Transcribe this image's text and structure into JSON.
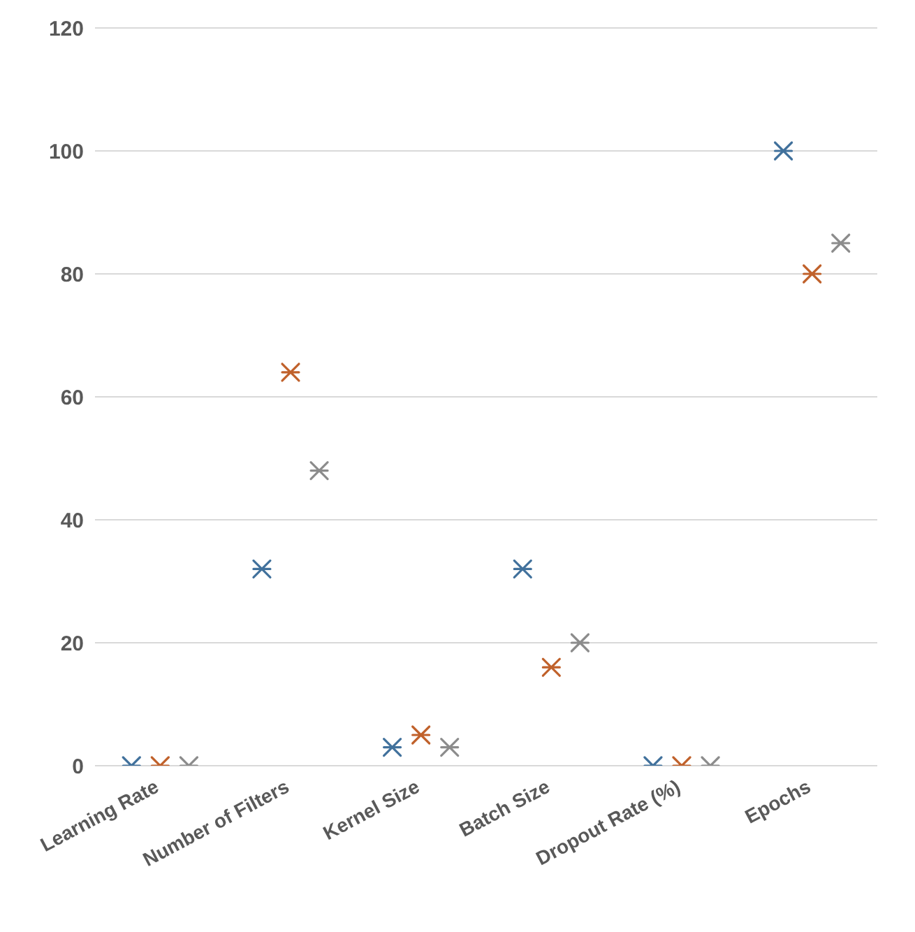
{
  "chart_data": {
    "type": "scatter",
    "categories": [
      "Learning Rate",
      "Number of Filters",
      "Kernel Size",
      "Batch Size",
      "Dropout Rate (%)",
      "Epochs"
    ],
    "series": [
      {
        "color": "#41719c",
        "values": [
          0,
          32,
          3,
          32,
          0,
          100
        ]
      },
      {
        "color": "#c0612b",
        "values": [
          0,
          64,
          5,
          16,
          0,
          80
        ]
      },
      {
        "color": "#8c8c8c",
        "values": [
          0,
          48,
          3,
          20,
          0,
          85
        ]
      }
    ],
    "ylim": [
      0,
      120
    ],
    "yticks": [
      0,
      20,
      40,
      60,
      80,
      100,
      120
    ],
    "grid": "y",
    "legend": false,
    "marker": "cross"
  }
}
